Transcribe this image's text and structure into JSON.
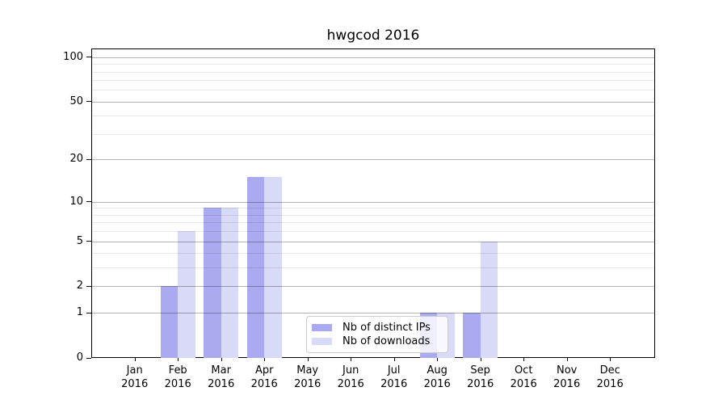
{
  "chart_data": {
    "type": "bar",
    "title": "hwgcod 2016",
    "categories": [
      "Jan",
      "Feb",
      "Mar",
      "Apr",
      "May",
      "Jun",
      "Jul",
      "Aug",
      "Sep",
      "Oct",
      "Nov",
      "Dec"
    ],
    "x_tick_second_line": "2016",
    "series": [
      {
        "name": "Nb of distinct IPs",
        "key": "distinct-ips",
        "color": "#aaaaf0",
        "values": [
          0,
          2,
          9,
          15,
          0,
          0,
          0,
          1,
          1,
          0,
          0,
          0
        ]
      },
      {
        "name": "Nb of downloads",
        "key": "downloads",
        "color": "#d9d9f8",
        "values": [
          0,
          6,
          9,
          15,
          0,
          0,
          0,
          1,
          5,
          0,
          0,
          0
        ]
      }
    ],
    "xlabel": "",
    "ylabel": "",
    "y_axis": {
      "scale": "log1p",
      "ticks_major": [
        0,
        1,
        2,
        5,
        10,
        20,
        50,
        100
      ],
      "ticks_minor": [
        3,
        4,
        6,
        7,
        8,
        9,
        30,
        40,
        60,
        70,
        80,
        90
      ],
      "max": 114.3
    },
    "grid": {
      "horizontal": true,
      "major_color": "#b2b2b2",
      "minor_color": "#e8e8e8"
    },
    "legend_position": "lower center"
  }
}
